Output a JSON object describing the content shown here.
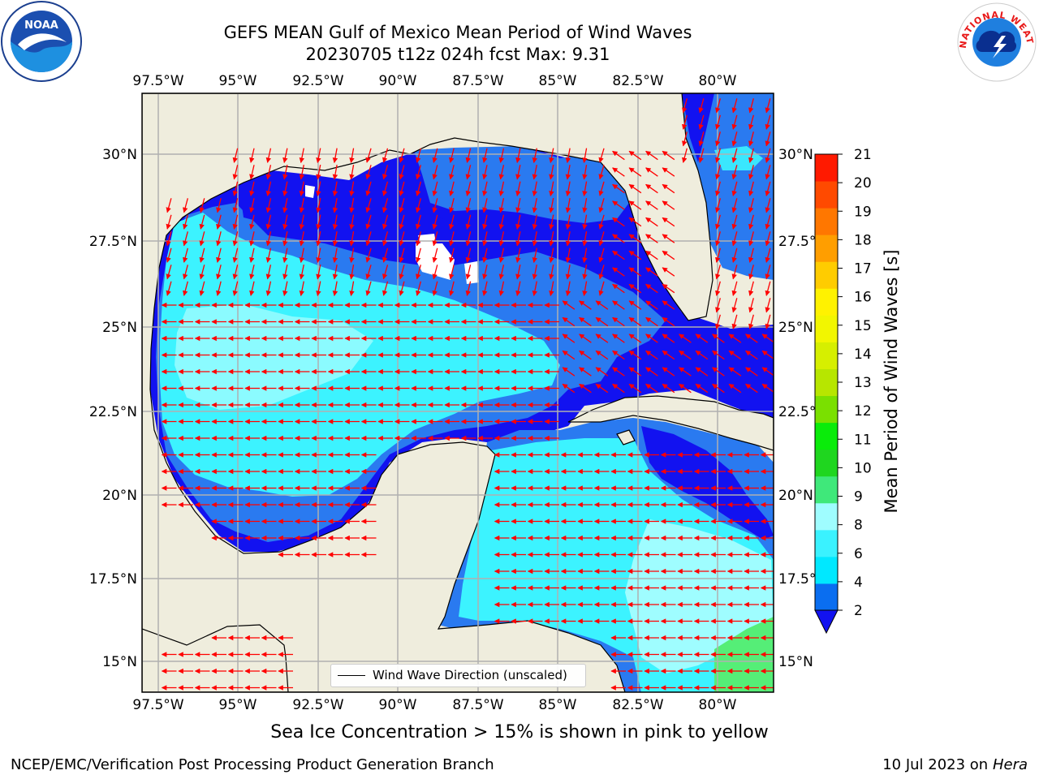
{
  "title_line1": "GEFS MEAN Gulf of Mexico Mean Period of Wind Waves",
  "title_line2": "20230705 t12z 024h fcst   Max: 9.31",
  "lon_labels": [
    "97.5°W",
    "95°W",
    "92.5°W",
    "90°W",
    "87.5°W",
    "85°W",
    "82.5°W",
    "80°W"
  ],
  "lat_labels": [
    "30°N",
    "27.5°N",
    "25°N",
    "22.5°N",
    "20°N",
    "17.5°N",
    "15°N"
  ],
  "colorbar": {
    "label": "Mean Period of Wind Waves [s]",
    "ticks": [
      "2",
      "4",
      "6",
      "8",
      "9",
      "10",
      "11",
      "12",
      "13",
      "14",
      "15",
      "16",
      "17",
      "18",
      "19",
      "20",
      "21"
    ],
    "colors": [
      "#0a6ef0",
      "#00e8ff",
      "#3af2ff",
      "#9ffdff",
      "#3fe87a",
      "#1fd61f",
      "#0aec0a",
      "#7ae000",
      "#b7e600",
      "#d6ef00",
      "#f2f600",
      "#fff200",
      "#ffcc00",
      "#ff9e00",
      "#ff7700",
      "#ff4a00",
      "#ff1a00"
    ],
    "extend_color": "#1212f0"
  },
  "legend_label": "Wind Wave Direction (unscaled)",
  "footnote": "Sea Ice Concentration > 15% is shown in pink to yellow",
  "footer_left": "NCEP/EMC/Verification Post Processing Product Generation Branch",
  "footer_date": "10 Jul 2023 on ",
  "footer_machine": "Hera",
  "logos": {
    "left": "NOAA",
    "right": "NATIONAL WEATHER SERVICE"
  },
  "colors": {
    "land": "#efeddd",
    "deep_blue": "#1212f0",
    "mid_blue": "#2a7af0",
    "cyan": "#3cf3ff",
    "light_cyan": "#9ffdff",
    "green": "#55ee77",
    "arrow": "#ff0000"
  }
}
